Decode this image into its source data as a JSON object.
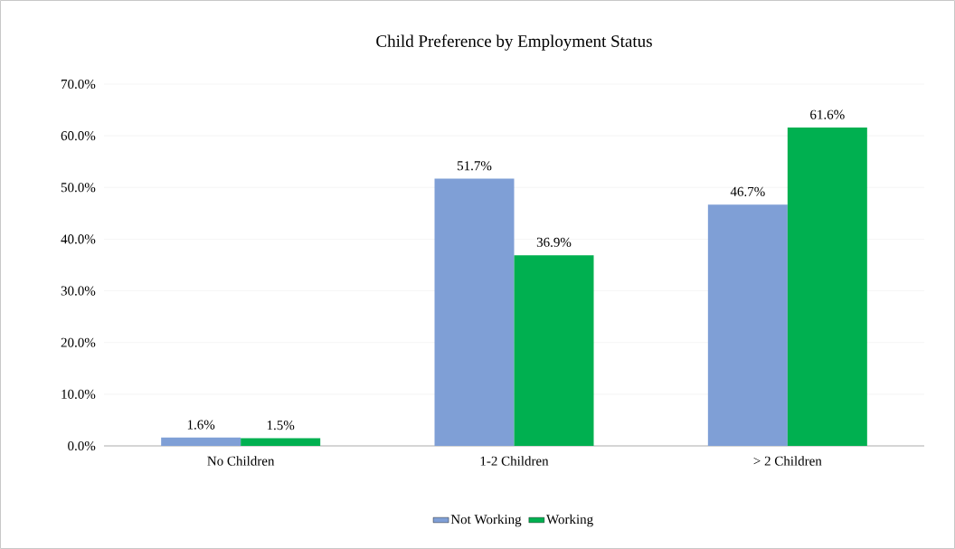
{
  "chart_data": {
    "type": "bar",
    "title": "Child Preference by Employment Status",
    "categories": [
      "No Children",
      "1-2 Children",
      "> 2 Children"
    ],
    "series": [
      {
        "name": "Not Working",
        "color": "#7f9fd6",
        "values": [
          1.6,
          51.7,
          46.7
        ],
        "value_labels": [
          "1.6%",
          "51.7%",
          "46.7%"
        ]
      },
      {
        "name": "Working",
        "color": "#00b050",
        "values": [
          1.5,
          36.9,
          61.6
        ],
        "value_labels": [
          "1.5%",
          "36.9%",
          "61.6%"
        ]
      }
    ],
    "ylim": [
      0,
      70
    ],
    "yticks": [
      {
        "value": 0,
        "label": "0.0%"
      },
      {
        "value": 10,
        "label": "10.0%"
      },
      {
        "value": 20,
        "label": "20.0%"
      },
      {
        "value": 30,
        "label": "30.0%"
      },
      {
        "value": 40,
        "label": "40.0%"
      },
      {
        "value": 50,
        "label": "50.0%"
      },
      {
        "value": 60,
        "label": "60.0%"
      },
      {
        "value": 70,
        "label": "70.0%"
      }
    ],
    "grid": "y",
    "legend": "bottom"
  }
}
